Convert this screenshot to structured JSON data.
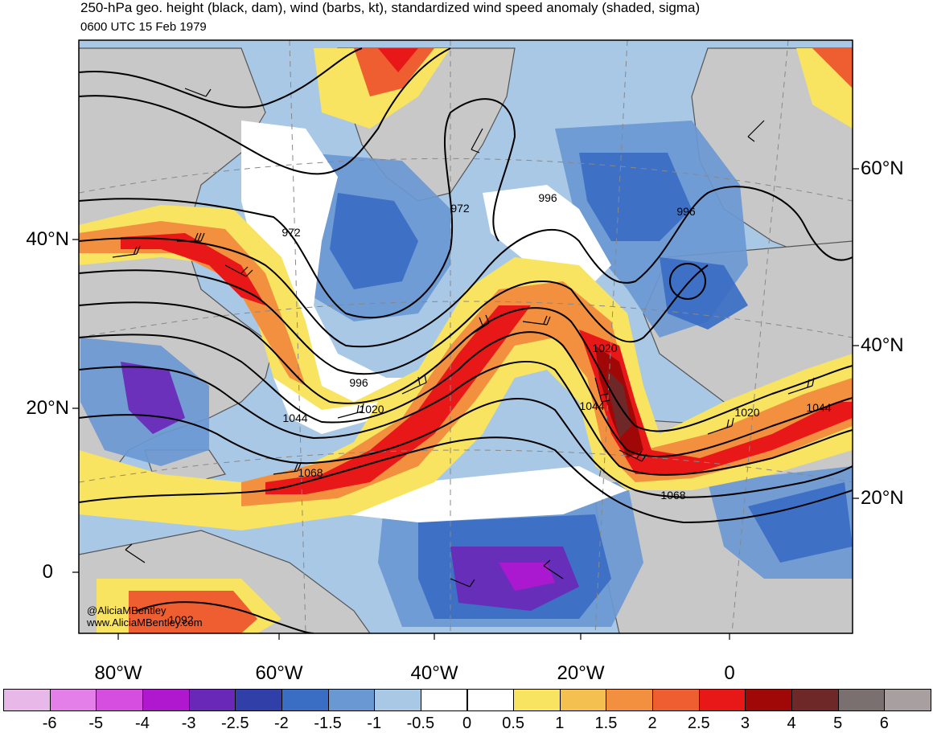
{
  "title": "250-hPa geo. height (black, dam), wind (barbs, kt), standardized wind speed anomaly (shaded, sigma)",
  "subtitle": "0600 UTC 15 Feb 1979",
  "lat_labels_left": [
    "40°N",
    "20°N",
    "0"
  ],
  "lat_labels_right": [
    "60°N",
    "40°N",
    "20°N"
  ],
  "lon_labels": [
    "80°W",
    "60°W",
    "40°W",
    "20°W",
    "0"
  ],
  "contour_labels": [
    "972",
    "972",
    "996",
    "996",
    "996",
    "1020",
    "1020",
    "1020",
    "1044",
    "1044",
    "1044",
    "1068",
    "1068",
    "1092"
  ],
  "credits": [
    "@AliciaMBentley",
    "www.AliciaMBentley.com"
  ],
  "colorbar": {
    "labels": [
      "-6",
      "-5",
      "-4",
      "-3",
      "-2.5",
      "-2",
      "-1.5",
      "-1",
      "-0.5",
      "0",
      "0.5",
      "1",
      "1.5",
      "2",
      "2.5",
      "3",
      "4",
      "5",
      "6"
    ],
    "colors": [
      "#e8b8e8",
      "#e47ee8",
      "#d64ee0",
      "#b018d0",
      "#6a28b8",
      "#3040a8",
      "#3a6ec4",
      "#6a98d2",
      "#a8c8e6",
      "#ffffff",
      "#ffffff",
      "#f8e460",
      "#f4c050",
      "#f29040",
      "#ee5e30",
      "#e81818",
      "#a00808",
      "#6e2828",
      "#7a7070",
      "#a8a0a0"
    ]
  },
  "colors": {
    "land": "#c8c8c8",
    "contour": "#000000",
    "coast": "#444444"
  }
}
